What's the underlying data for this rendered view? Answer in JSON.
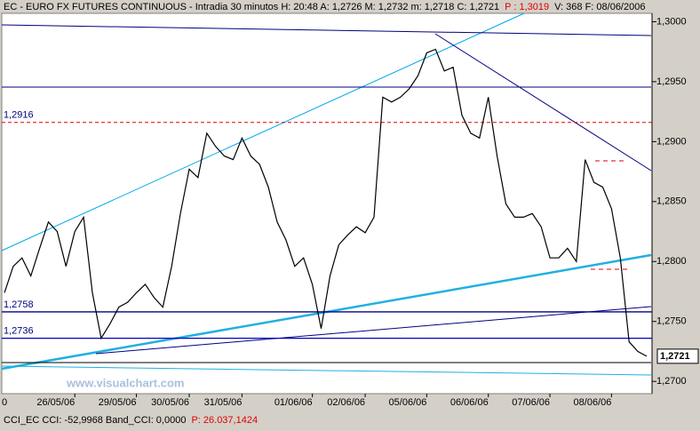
{
  "chart_data": {
    "type": "line",
    "header": {
      "main": "EC - EURO FX FUTURES CONTINUOUS - Intradia 30 minutos  H: 20:48  A: 1,2726  M: 1,2732  m: 1,2718  C: 1,2721",
      "p": "P : 1,3019",
      "rest": "V: 368  F: 08/06/2006"
    },
    "footer": {
      "main": "CCI_EC  CCI: -52,9968  Band_CCI: 0,0000",
      "p": "P: 26.037,1424"
    },
    "zero_label": "0",
    "watermark": "www.visualchart.com",
    "categories": [
      null,
      null,
      null,
      null,
      null,
      null,
      null,
      null,
      "26/05/06",
      null,
      null,
      null,
      null,
      null,
      null,
      "29/05/06",
      null,
      null,
      null,
      null,
      null,
      "30/05/06",
      null,
      null,
      null,
      null,
      null,
      "31/05/06",
      null,
      null,
      null,
      null,
      null,
      null,
      null,
      "01/06/06",
      null,
      null,
      null,
      null,
      null,
      "02/06/06",
      null,
      null,
      null,
      null,
      null,
      null,
      "05/06/06",
      null,
      null,
      null,
      null,
      null,
      null,
      "06/06/06",
      null,
      null,
      null,
      null,
      null,
      null,
      "07/06/06",
      null,
      null,
      null,
      null,
      null,
      null,
      "08/06/06",
      null,
      null,
      null,
      null
    ],
    "series": [
      {
        "color": "#000000",
        "values": [
          1.2774,
          1.2796,
          1.2803,
          1.2788,
          1.2811,
          1.2833,
          1.2825,
          1.2796,
          1.2825,
          1.2837,
          1.2774,
          1.2736,
          1.2748,
          1.2762,
          1.2766,
          1.2774,
          1.2781,
          1.277,
          1.2762,
          1.2796,
          1.284,
          1.2877,
          1.287,
          1.2907,
          1.2896,
          1.2888,
          1.2885,
          1.2903,
          1.2888,
          1.2881,
          1.2862,
          1.2833,
          1.2818,
          1.2796,
          1.2803,
          1.2781,
          1.2744,
          1.2788,
          1.2814,
          1.2822,
          1.2829,
          1.2824,
          1.2837,
          1.2937,
          1.2933,
          1.2937,
          1.2944,
          1.2955,
          1.2974,
          1.2977,
          1.2959,
          1.2962,
          1.2922,
          1.2907,
          1.2903,
          1.2937,
          1.2888,
          1.2848,
          1.2837,
          1.2837,
          1.284,
          1.2829,
          1.2803,
          1.2803,
          1.2811,
          1.28,
          1.2885,
          1.2866,
          1.2862,
          1.2844,
          1.2803,
          1.2733,
          1.2725,
          1.2721
        ]
      }
    ],
    "ylim": [
      1.2692,
      1.3007
    ],
    "yticks": [
      {
        "value": 1.27,
        "label": "1,2700"
      },
      {
        "value": 1.275,
        "label": "1,2750"
      },
      {
        "value": 1.28,
        "label": "1,2800"
      },
      {
        "value": 1.285,
        "label": "1,2850"
      },
      {
        "value": 1.29,
        "label": "1,2900"
      },
      {
        "value": 1.295,
        "label": "1,2950"
      },
      {
        "value": 1.3,
        "label": "1,3000"
      }
    ],
    "levels": [
      {
        "value": 1.2916,
        "label": "1,2916",
        "color": "#e00000",
        "dashed": true
      },
      {
        "value": 1.2758,
        "label": "1,2758",
        "color": "#000080",
        "dashed": false
      },
      {
        "value": 1.2736,
        "label": "1,2736",
        "color": "#0000c0",
        "dashed": false
      }
    ],
    "last": {
      "value": 1.2721,
      "label": "1,2721"
    }
  }
}
